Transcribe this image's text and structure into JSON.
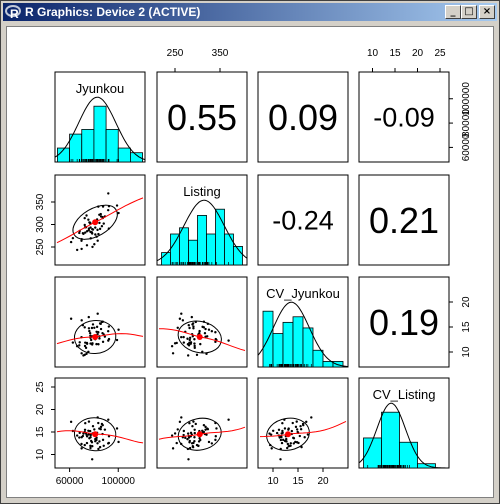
{
  "window": {
    "title": "R Graphics: Device 2 (ACTIVE)",
    "app_icon": "r-logo-icon",
    "buttons": {
      "minimize": "_",
      "maximize": "□",
      "close": "×"
    }
  },
  "chart_data": {
    "type": "scatter",
    "variables": [
      "Jyunkou",
      "Listing",
      "CV_Jyunkou",
      "CV_Listing"
    ],
    "correlations": [
      {
        "pair": [
          "Jyunkou",
          "Listing"
        ],
        "label": "0.55"
      },
      {
        "pair": [
          "Jyunkou",
          "CV_Jyunkou"
        ],
        "label": "0.09"
      },
      {
        "pair": [
          "Jyunkou",
          "CV_Listing"
        ],
        "label": "-0.09"
      },
      {
        "pair": [
          "Listing",
          "CV_Jyunkou"
        ],
        "label": "-0.24"
      },
      {
        "pair": [
          "Listing",
          "CV_Listing"
        ],
        "label": "0.21"
      },
      {
        "pair": [
          "CV_Jyunkou",
          "CV_Listing"
        ],
        "label": "0.19"
      }
    ],
    "axes": {
      "Jyunkou": {
        "range": [
          48000,
          122000
        ],
        "ticks_bottom": [
          "60000",
          "100000"
        ],
        "ticks_right": [
          "60000",
          "80000",
          "100000"
        ]
      },
      "Listing": {
        "range": [
          210,
          410
        ],
        "ticks_top": [
          "250",
          "350"
        ],
        "ticks_left": [
          "250",
          "300",
          "350"
        ]
      },
      "CV_Jyunkou": {
        "range": [
          7,
          25
        ],
        "ticks_bottom": [
          "10",
          "15",
          "20"
        ],
        "ticks_right": [
          "10",
          "15",
          "20"
        ]
      },
      "CV_Listing": {
        "range": [
          7,
          27
        ],
        "ticks_top": [
          "10",
          "15",
          "20",
          "25"
        ],
        "ticks_left": [
          "10",
          "15",
          "20",
          "25"
        ]
      }
    },
    "histograms": {
      "Jyunkou": {
        "breaks": [
          50000,
          60000,
          70000,
          80000,
          90000,
          100000,
          110000,
          120000
        ],
        "counts": [
          3,
          6,
          7,
          12,
          7,
          3,
          2
        ]
      },
      "Listing": {
        "breaks": [
          220,
          240,
          260,
          280,
          300,
          320,
          340,
          360,
          380,
          400
        ],
        "counts": [
          2,
          5,
          6,
          4,
          8,
          5,
          9,
          5,
          3
        ]
      },
      "CV_Jyunkou": {
        "breaks": [
          8,
          10,
          12,
          14,
          16,
          18,
          20,
          22,
          24
        ],
        "counts": [
          10,
          6,
          8,
          9,
          7,
          3,
          1,
          1
        ]
      },
      "CV_Listing": {
        "breaks": [
          8,
          12,
          16,
          20,
          24,
          28
        ],
        "counts": [
          7,
          13,
          6,
          1,
          0
        ]
      }
    },
    "means": {
      "Jyunkou": 81000,
      "Listing": 305,
      "CV_Jyunkou": 13,
      "CV_Listing": 14.5
    }
  }
}
